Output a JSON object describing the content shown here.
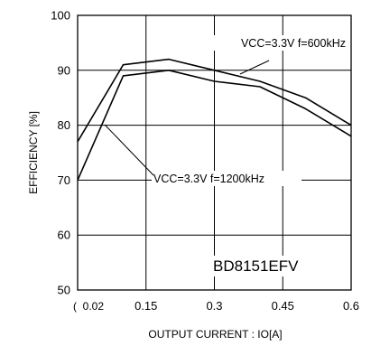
{
  "chart_data": {
    "type": "line",
    "xlabel": "OUTPUT CURRENT : IO[A]",
    "ylabel": "EFFICIENCY [%]",
    "xlim": [
      0,
      0.6
    ],
    "ylim": [
      50,
      100
    ],
    "x_ticks": [
      {
        "value": 0,
        "label": "(  0.02"
      },
      {
        "value": 0.15,
        "label": "0.15"
      },
      {
        "value": 0.3,
        "label": "0.3"
      },
      {
        "value": 0.45,
        "label": "0.45"
      },
      {
        "value": 0.6,
        "label": "0.6"
      }
    ],
    "y_ticks": [
      50,
      60,
      70,
      80,
      90,
      100
    ],
    "grid": true,
    "series": [
      {
        "name": "VCC=3.3V f=600kHz",
        "x": [
          0,
          0.1,
          0.2,
          0.3,
          0.4,
          0.5,
          0.6
        ],
        "y": [
          77,
          91,
          92,
          90,
          88,
          85,
          80
        ]
      },
      {
        "name": "VCC=3.3V f=1200kHz",
        "x": [
          0,
          0.1,
          0.2,
          0.3,
          0.4,
          0.5,
          0.6
        ],
        "y": [
          70,
          89,
          90,
          88,
          87,
          83,
          78
        ]
      }
    ],
    "annotations": [
      {
        "text": "VCC=3.3V f=600kHz",
        "series": 0
      },
      {
        "text": "VCC=3.3V f=1200kHz",
        "series": 1
      }
    ],
    "part_label": "BD8151EFV"
  },
  "colors": {
    "line": "#000000",
    "grid": "#000000",
    "background": "#ffffff"
  }
}
